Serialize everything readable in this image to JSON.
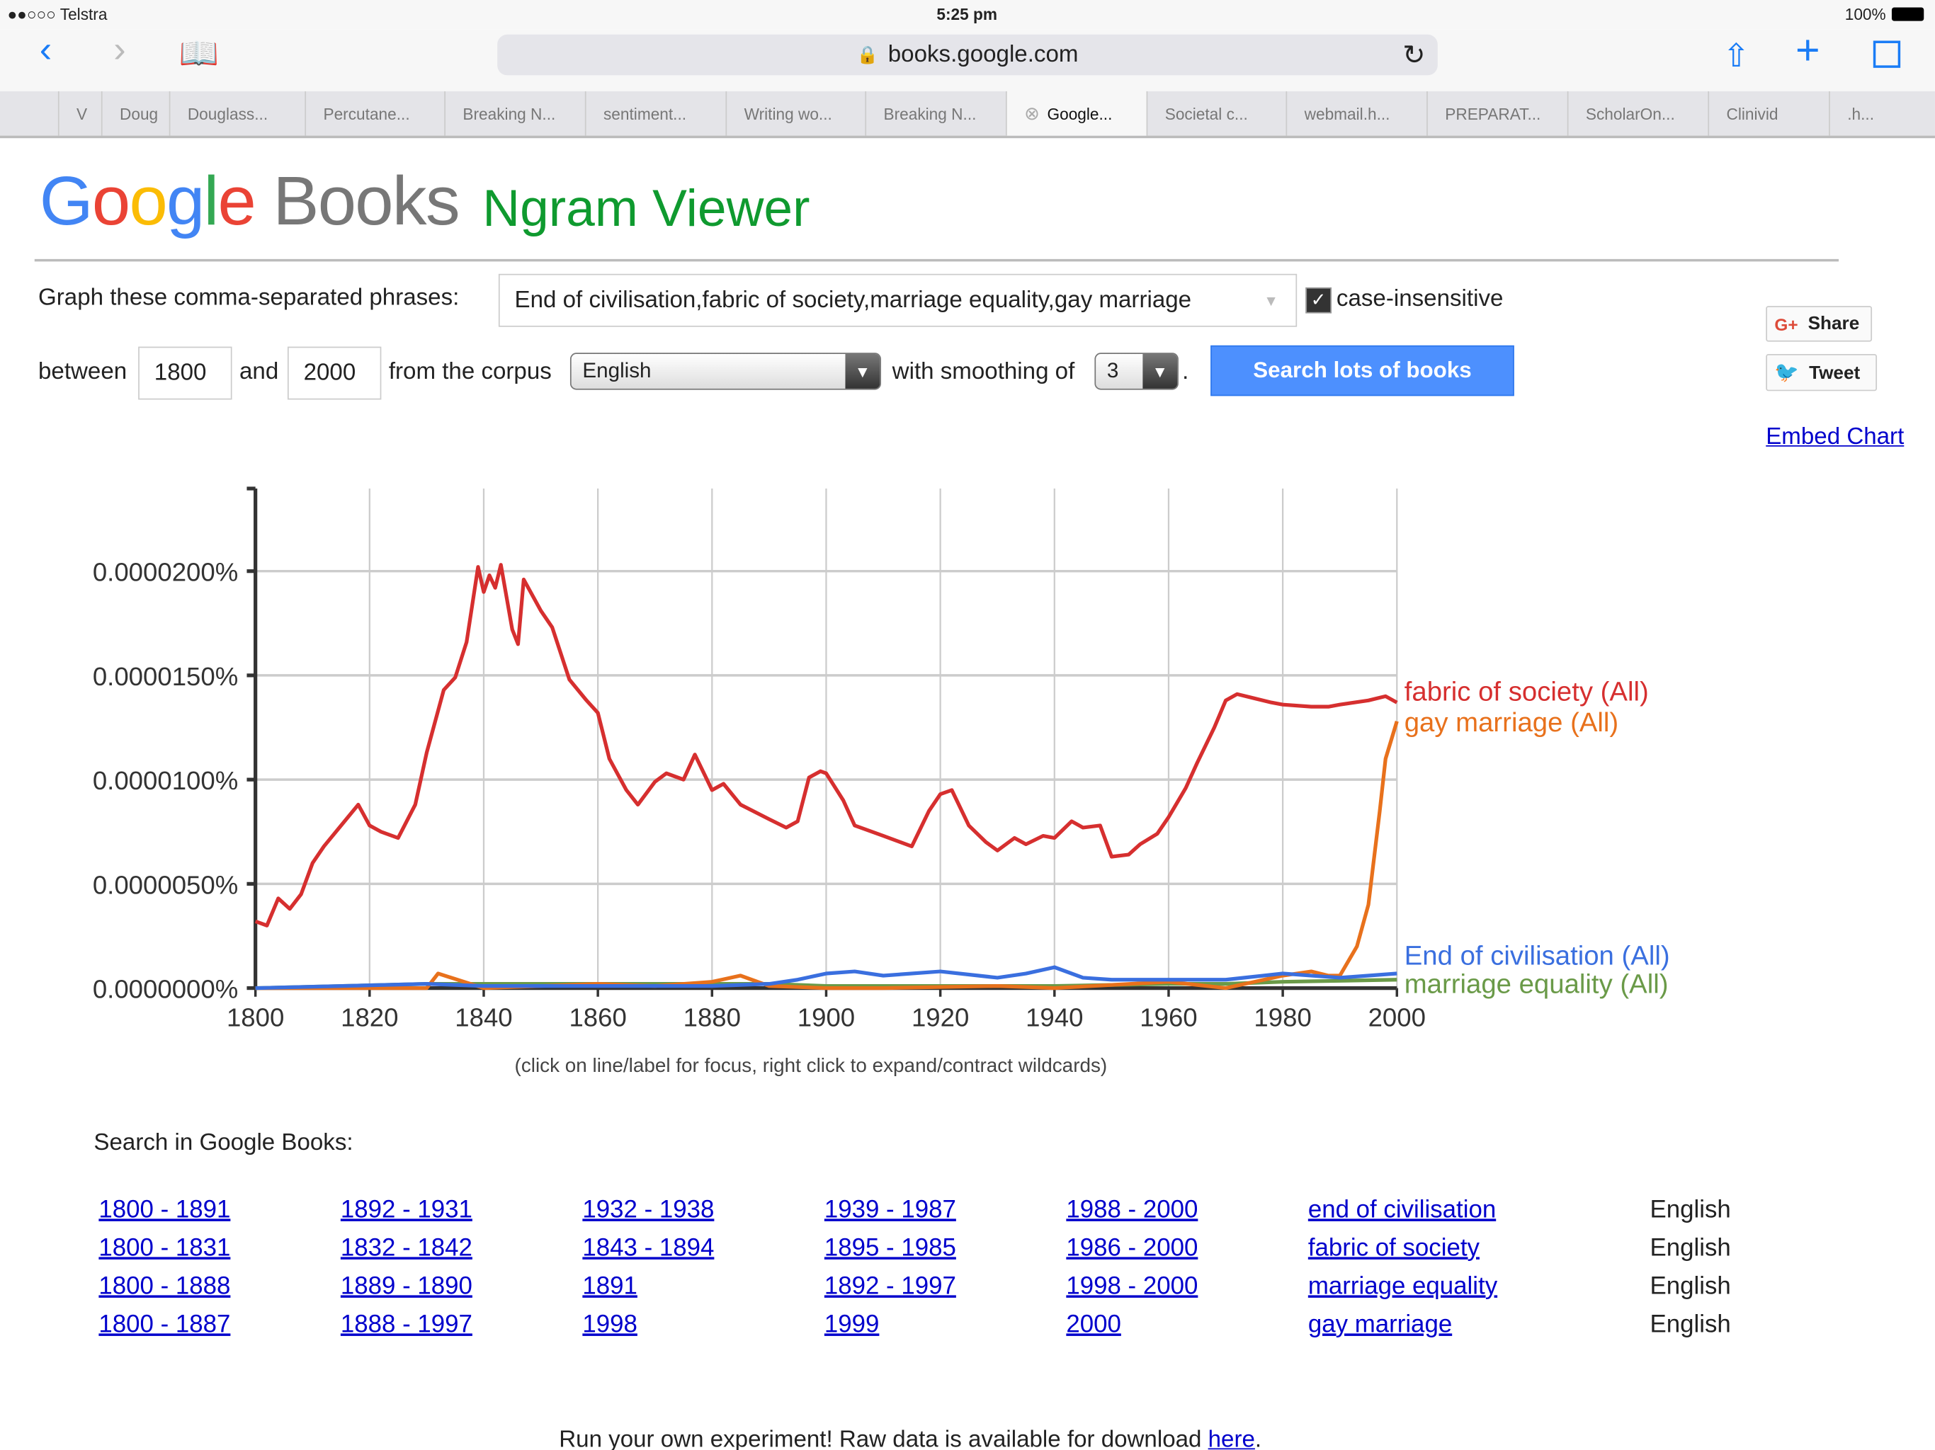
{
  "status": {
    "carrier": "●●○○○ Telstra",
    "time": "5:25 pm",
    "battery": "100%"
  },
  "browser": {
    "url": "books.google.com",
    "tabs": [
      "V",
      "Doug",
      "Douglass...",
      "Percutane...",
      "Breaking N...",
      "sentiment...",
      "Writing wo...",
      "Breaking N...",
      "Google...",
      "Societal c...",
      "webmail.h...",
      "PREPARAT...",
      "ScholarOn...",
      "Clinivid",
      ".h..."
    ],
    "active_tab": 8
  },
  "header": {
    "logo": "Google Books",
    "title": "Ngram Viewer"
  },
  "form": {
    "phrases_label": "Graph these comma-separated phrases:",
    "phrases_value": "End of civilisation,fabric of society,marriage equality,gay marriage",
    "case_insensitive_label": "case-insensitive",
    "case_insensitive": true,
    "between_label": "between",
    "start": "1800",
    "and_label": "and",
    "end": "2000",
    "corpus_label": "from the corpus",
    "corpus": "English",
    "smoothing_label": "with smoothing of",
    "smoothing": "3",
    "period": ".",
    "search_button": "Search lots of books"
  },
  "social": {
    "share": "Share",
    "tweet": "Tweet",
    "embed": "Embed Chart"
  },
  "chart_data": {
    "type": "line",
    "xlim": [
      1800,
      2000
    ],
    "ylim": [
      0,
      2.4e-05
    ],
    "grid": true,
    "xticks": [
      "1800",
      "1820",
      "1840",
      "1860",
      "1880",
      "1900",
      "1920",
      "1940",
      "1960",
      "1980",
      "2000"
    ],
    "yticks": [
      "0.0000000%",
      "0.0000050%",
      "0.0000100%",
      "0.0000150%",
      "0.0000200%"
    ],
    "legend": "right",
    "series": [
      {
        "name": "fabric of society (All)",
        "color": "#d62f2f",
        "x": [
          1800,
          1802,
          1804,
          1806,
          1808,
          1810,
          1812,
          1815,
          1818,
          1820,
          1822,
          1825,
          1828,
          1830,
          1833,
          1835,
          1837,
          1839,
          1840,
          1841,
          1842,
          1843,
          1845,
          1846,
          1847,
          1850,
          1852,
          1855,
          1858,
          1860,
          1862,
          1865,
          1867,
          1870,
          1872,
          1875,
          1877,
          1880,
          1882,
          1885,
          1890,
          1893,
          1895,
          1897,
          1899,
          1900,
          1903,
          1905,
          1910,
          1913,
          1915,
          1918,
          1920,
          1922,
          1925,
          1928,
          1930,
          1933,
          1935,
          1938,
          1940,
          1943,
          1945,
          1948,
          1950,
          1953,
          1955,
          1958,
          1960,
          1963,
          1965,
          1968,
          1970,
          1972,
          1975,
          1978,
          1980,
          1985,
          1988,
          1990,
          1995,
          1998,
          2000
        ],
        "values": [
          3.2e-06,
          3e-06,
          4.3e-06,
          3.8e-06,
          4.5e-06,
          6e-06,
          6.8e-06,
          7.8e-06,
          8.8e-06,
          7.8e-06,
          7.5e-06,
          7.2e-06,
          8.8e-06,
          1.13e-05,
          1.43e-05,
          1.49e-05,
          1.66e-05,
          2.02e-05,
          1.9e-05,
          1.98e-05,
          1.92e-05,
          2.03e-05,
          1.72e-05,
          1.65e-05,
          1.96e-05,
          1.81e-05,
          1.73e-05,
          1.48e-05,
          1.38e-05,
          1.32e-05,
          1.1e-05,
          9.5e-06,
          8.8e-06,
          9.9e-06,
          1.03e-05,
          1e-05,
          1.12e-05,
          9.5e-06,
          9.8e-06,
          8.8e-06,
          8.1e-06,
          7.7e-06,
          8e-06,
          1.01e-05,
          1.04e-05,
          1.03e-05,
          9e-06,
          7.8e-06,
          7.3e-06,
          7e-06,
          6.8e-06,
          8.5e-06,
          9.3e-06,
          9.5e-06,
          7.8e-06,
          7e-06,
          6.6e-06,
          7.2e-06,
          6.9e-06,
          7.3e-06,
          7.2e-06,
          8e-06,
          7.7e-06,
          7.8e-06,
          6.3e-06,
          6.4e-06,
          6.9e-06,
          7.4e-06,
          8.2e-06,
          9.6e-06,
          1.08e-05,
          1.25e-05,
          1.38e-05,
          1.41e-05,
          1.39e-05,
          1.37e-05,
          1.36e-05,
          1.35e-05,
          1.35e-05,
          1.36e-05,
          1.38e-05,
          1.4e-05,
          1.37e-05
        ]
      },
      {
        "name": "gay marriage (All)",
        "color": "#e8711c",
        "x": [
          1800,
          1830,
          1832,
          1840,
          1860,
          1870,
          1880,
          1885,
          1890,
          1900,
          1910,
          1930,
          1940,
          1960,
          1970,
          1980,
          1985,
          1988,
          1990,
          1993,
          1995,
          1997,
          1998,
          2000
        ],
        "values": [
          0,
          0,
          7e-07,
          0,
          2e-07,
          1e-07,
          3e-07,
          6e-07,
          1e-07,
          0,
          0,
          1e-07,
          0,
          3e-07,
          0,
          6e-07,
          8e-07,
          6e-07,
          6e-07,
          2e-06,
          4e-06,
          8.5e-06,
          1.1e-05,
          1.28e-05
        ]
      },
      {
        "name": "End of civilisation (All)",
        "color": "#3a6fdf",
        "x": [
          1800,
          1830,
          1840,
          1860,
          1880,
          1890,
          1895,
          1900,
          1905,
          1910,
          1920,
          1930,
          1935,
          1940,
          1945,
          1950,
          1960,
          1970,
          1980,
          1990,
          2000
        ],
        "values": [
          0,
          2e-07,
          1e-07,
          1e-07,
          1e-07,
          2e-07,
          4e-07,
          7e-07,
          8e-07,
          6e-07,
          8e-07,
          5e-07,
          7e-07,
          1e-06,
          5e-07,
          4e-07,
          4e-07,
          4e-07,
          7e-07,
          5e-07,
          7e-07
        ]
      },
      {
        "name": "marriage equality (All)",
        "color": "#6a9a48",
        "x": [
          1800,
          1830,
          1860,
          1890,
          1900,
          1920,
          1940,
          1960,
          1970,
          1980,
          2000
        ],
        "values": [
          0,
          2e-07,
          2e-07,
          2e-07,
          1e-07,
          1e-07,
          1e-07,
          2e-07,
          2e-07,
          3e-07,
          4e-07
        ]
      }
    ],
    "note": "(click on line/label for focus, right click to expand/contract wildcards)"
  },
  "results": {
    "label": "Search in Google Books:",
    "rows": [
      {
        "ranges": [
          "1800 - 1891",
          "1892 - 1931",
          "1932 - 1938",
          "1939 - 1987",
          "1988 - 2000"
        ],
        "phrase": "end of civilisation",
        "lang": "English"
      },
      {
        "ranges": [
          "1800 - 1831",
          "1832 - 1842",
          "1843 - 1894",
          "1895 - 1985",
          "1986 - 2000"
        ],
        "phrase": "fabric of society",
        "lang": "English"
      },
      {
        "ranges": [
          "1800 - 1888",
          "1889 - 1890",
          "1891",
          "1892 - 1997",
          "1998 - 2000"
        ],
        "phrase": "marriage equality",
        "lang": "English"
      },
      {
        "ranges": [
          "1800 - 1887",
          "1888 - 1997",
          "1998",
          "1999",
          "2000"
        ],
        "phrase": "gay marriage",
        "lang": "English"
      }
    ]
  },
  "footer": {
    "text": "Run your own experiment! Raw data is available for download ",
    "link": "here",
    "end": "."
  }
}
